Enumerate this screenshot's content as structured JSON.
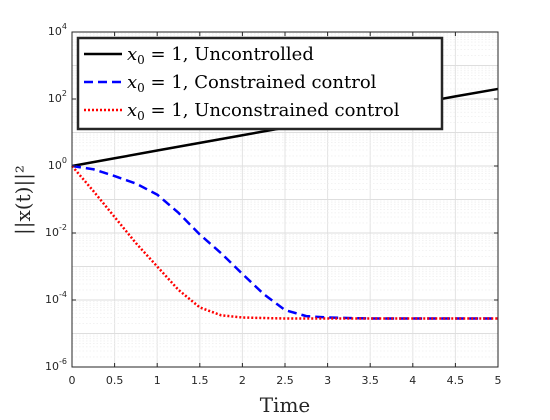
{
  "chart_data": {
    "type": "line",
    "title": "",
    "xlabel": "Time",
    "ylabel": "||x(t)||²",
    "xlim": [
      0,
      5
    ],
    "ylim": [
      1e-06,
      10000.0
    ],
    "yscale": "log",
    "grid": true,
    "legend_position": "top-left",
    "x_ticks": [
      0,
      0.5,
      1,
      1.5,
      2,
      2.5,
      3,
      3.5,
      4,
      4.5,
      5
    ],
    "x_tick_labels": [
      "0",
      "0.5",
      "1",
      "1.5",
      "2",
      "2.5",
      "3",
      "3.5",
      "4",
      "4.5",
      "5"
    ],
    "y_ticks": [
      1e-06,
      0.0001,
      0.01,
      1.0,
      100.0,
      10000.0
    ],
    "y_tick_labels": [
      {
        "base": "10",
        "exp": "-6"
      },
      {
        "base": "10",
        "exp": "-4"
      },
      {
        "base": "10",
        "exp": "-2"
      },
      {
        "base": "10",
        "exp": "0"
      },
      {
        "base": "10",
        "exp": "2"
      },
      {
        "base": "10",
        "exp": "4"
      }
    ],
    "series": [
      {
        "name": "x0 = 1, Uncontrolled",
        "legend": {
          "var": "x",
          "sub": "0",
          "rest": " = 1, Uncontrolled"
        },
        "color": "#000000",
        "style": "solid",
        "x": [
          0,
          0.5,
          1,
          1.5,
          2,
          2.5,
          3,
          3.5,
          4,
          4.5,
          5
        ],
        "y": [
          1,
          1.7,
          2.9,
          4.9,
          8.3,
          14,
          24,
          41,
          70,
          120,
          200
        ]
      },
      {
        "name": "x0 = 1, Constrained control",
        "legend": {
          "var": "x",
          "sub": "0",
          "rest": " = 1, Constrained control"
        },
        "color": "#0000ff",
        "style": "dashed",
        "x": [
          0,
          0.25,
          0.5,
          0.75,
          1,
          1.25,
          1.5,
          1.75,
          2,
          2.25,
          2.5,
          2.75,
          3,
          3.5,
          4,
          4.5,
          5
        ],
        "y": [
          1,
          0.8,
          0.5,
          0.3,
          0.14,
          0.04,
          0.009,
          0.0025,
          0.0006,
          0.00015,
          5e-05,
          3.3e-05,
          3e-05,
          2.8e-05,
          2.8e-05,
          2.8e-05,
          2.8e-05
        ]
      },
      {
        "name": "x0 = 1, Unconstrained control",
        "legend": {
          "var": "x",
          "sub": "0",
          "rest": " = 1, Unconstrained control"
        },
        "color": "#ff0000",
        "style": "dotted",
        "x": [
          0,
          0.25,
          0.5,
          0.75,
          1,
          1.25,
          1.5,
          1.75,
          2,
          2.25,
          2.5,
          3,
          3.5,
          4,
          4.5,
          5
        ],
        "y": [
          1,
          0.18,
          0.03,
          0.005,
          0.001,
          0.0002,
          6e-05,
          3.5e-05,
          3e-05,
          2.9e-05,
          2.8e-05,
          2.8e-05,
          2.8e-05,
          2.8e-05,
          2.8e-05,
          2.8e-05
        ]
      }
    ]
  }
}
